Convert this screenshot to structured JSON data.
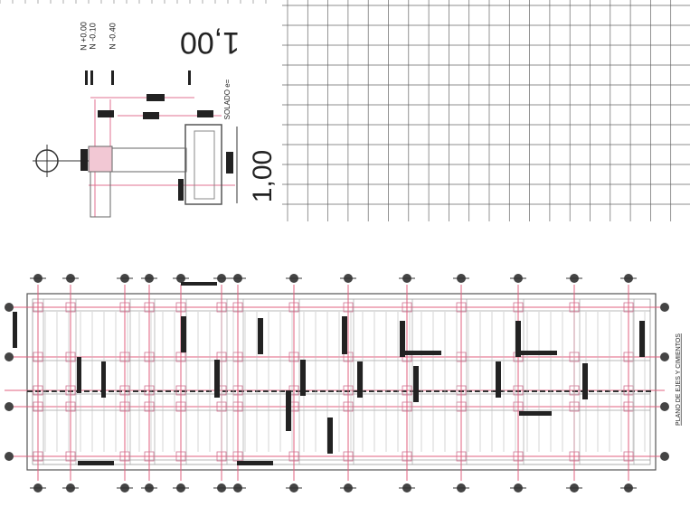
{
  "detail": {
    "scale_top": "1,00",
    "scale_side": "1,00",
    "levels": [
      "N +0.00",
      "N -0.10",
      "N -0.40"
    ],
    "solado": "SOLADO e="
  },
  "plan": {
    "title": "PLANO DE EJES Y CIMIENTOS"
  }
}
